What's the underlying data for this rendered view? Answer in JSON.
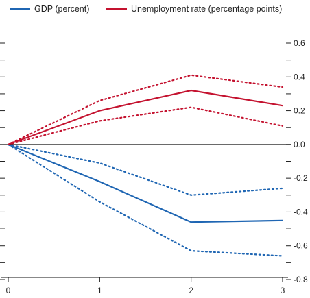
{
  "chart_data": {
    "type": "line",
    "x": [
      0,
      1,
      2,
      3
    ],
    "xticks": [
      "0",
      "1",
      "2",
      "3"
    ],
    "xlim": [
      0,
      3
    ],
    "ylim": [
      -0.8,
      0.6
    ],
    "yticks": [
      "0.6",
      "0.4",
      "0.2",
      "0.0",
      "-0.2",
      "-0.4",
      "-0.6",
      "-0.8"
    ],
    "ytick_values": [
      0.6,
      0.4,
      0.2,
      0.0,
      -0.2,
      -0.4,
      -0.6,
      -0.8
    ],
    "legend_position": "top",
    "grid": false,
    "zero_line": true,
    "series": [
      {
        "key": "gdp",
        "name": "GDP (percent)",
        "style": "solid",
        "color": "#1f66b3",
        "values": [
          0,
          -0.22,
          -0.46,
          -0.45
        ]
      },
      {
        "key": "gdp_upper",
        "style": "dotted",
        "color": "#1f66b3",
        "values": [
          0,
          -0.11,
          -0.3,
          -0.26
        ]
      },
      {
        "key": "gdp_lower",
        "style": "dotted",
        "color": "#1f66b3",
        "values": [
          0,
          -0.34,
          -0.63,
          -0.66
        ]
      },
      {
        "key": "unemployment",
        "name": "Unemployment rate (percentage points)",
        "style": "solid",
        "color": "#c4122f",
        "values": [
          0,
          0.2,
          0.32,
          0.23
        ]
      },
      {
        "key": "unemployment_upper",
        "style": "dotted",
        "color": "#c4122f",
        "values": [
          0,
          0.26,
          0.41,
          0.34
        ]
      },
      {
        "key": "unemployment_lower",
        "style": "dotted",
        "color": "#c4122f",
        "values": [
          0,
          0.14,
          0.22,
          0.11
        ]
      }
    ]
  },
  "legend": [
    {
      "label": "GDP (percent)",
      "color": "#1f66b3"
    },
    {
      "label": "Unemployment rate (percentage points)",
      "color": "#c4122f"
    }
  ]
}
